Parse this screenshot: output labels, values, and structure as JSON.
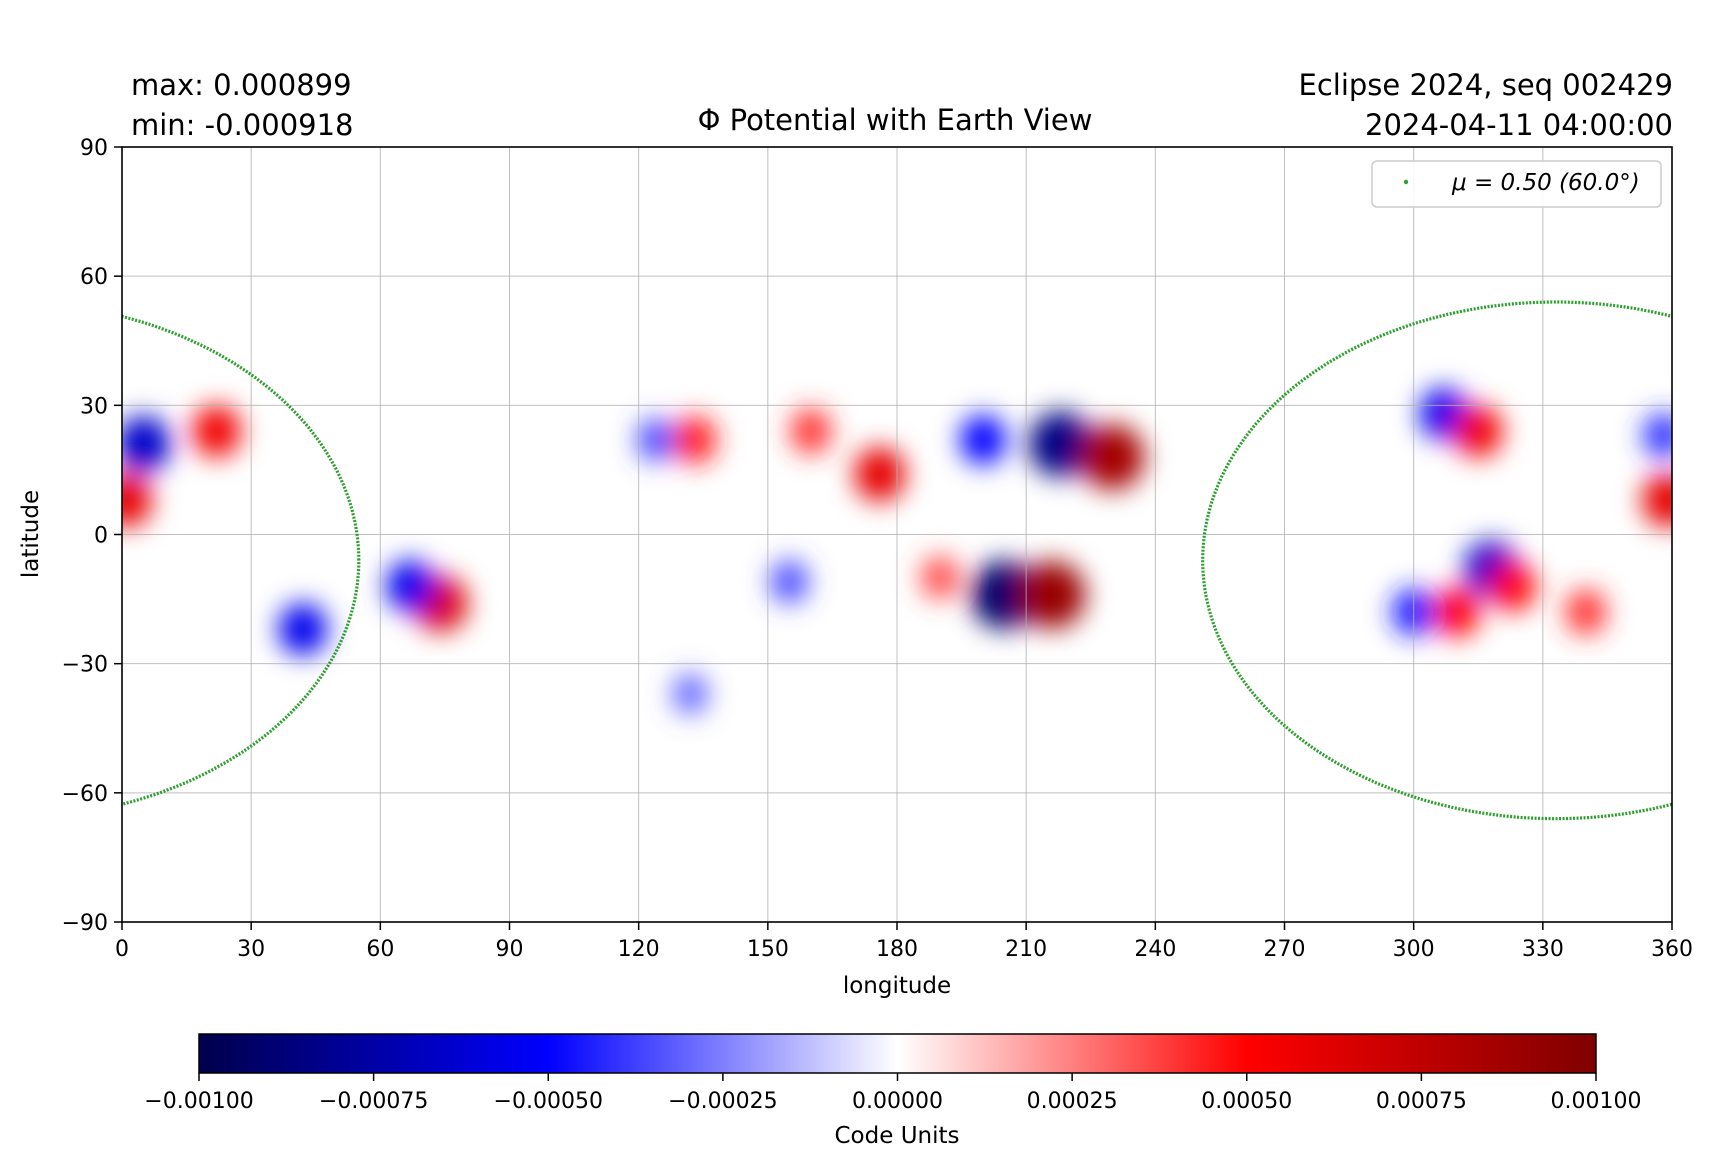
{
  "stats": {
    "max_label": "max:  0.000899",
    "min_label": "min:  -0.000918"
  },
  "info": {
    "line1": "Eclipse 2024, seq 002429",
    "line2": "2024-04-11 04:00:00"
  },
  "colors": {
    "contour": "#2ca02c",
    "grid": "#b0b0b0",
    "cmap": [
      "#00004c",
      "#0000ff",
      "#ffffff",
      "#ff0000",
      "#7f0000"
    ]
  },
  "chart_data": {
    "type": "heatmap",
    "title": "Φ Potential with Earth View",
    "xlabel": "longitude",
    "ylabel": "latitude",
    "xlim": [
      0,
      360
    ],
    "ylim": [
      -90,
      90
    ],
    "xticks": [
      0,
      30,
      60,
      90,
      120,
      150,
      180,
      210,
      240,
      270,
      300,
      330,
      360
    ],
    "yticks": [
      90,
      60,
      30,
      0,
      -30,
      -60,
      -90
    ],
    "ytick_labels": [
      "90",
      "60",
      "30",
      "0",
      "−30",
      "−60",
      "−90"
    ],
    "grid": true,
    "legend": {
      "position": "top-right",
      "entries": [
        "μ = 0.50 (60.0°)"
      ]
    },
    "earth_view_contour": {
      "center_lon": 333,
      "center_lat": -6,
      "lon_halfwidth": 82,
      "lat_top": 54,
      "lat_bottom": -66
    },
    "colorbar": {
      "label": "Code Units",
      "vmin": -0.001,
      "vmax": 0.001,
      "ticks": [
        "−0.00100",
        "−0.00075",
        "−0.00050",
        "−0.00025",
        "0.00000",
        "0.00025",
        "0.00050",
        "0.00075",
        "0.00100"
      ]
    },
    "features": [
      {
        "lon": 205,
        "lat": -14,
        "value": -0.000918
      },
      {
        "lon": 218,
        "lat": 21,
        "value": -0.00085
      },
      {
        "lon": 200,
        "lat": 22,
        "value": -0.0005
      },
      {
        "lon": 216,
        "lat": -14,
        "value": 0.000899
      },
      {
        "lon": 230,
        "lat": 18,
        "value": 0.00085
      },
      {
        "lon": 176,
        "lat": 14,
        "value": 0.0006
      },
      {
        "lon": 190,
        "lat": -10,
        "value": 0.00035
      },
      {
        "lon": 74,
        "lat": -16,
        "value": 0.00065
      },
      {
        "lon": 67,
        "lat": -12,
        "value": -0.00055
      },
      {
        "lon": 42,
        "lat": -22,
        "value": -0.00055
      },
      {
        "lon": 22,
        "lat": 24,
        "value": 0.00055
      },
      {
        "lon": 5,
        "lat": 21,
        "value": -0.00065
      },
      {
        "lon": 1,
        "lat": 8,
        "value": 0.0006
      },
      {
        "lon": 133,
        "lat": 22,
        "value": 0.00045
      },
      {
        "lon": 124,
        "lat": 22,
        "value": -0.00035
      },
      {
        "lon": 160,
        "lat": 24,
        "value": 0.0004
      },
      {
        "lon": 155,
        "lat": -11,
        "value": -0.00035
      },
      {
        "lon": 132,
        "lat": -37,
        "value": -0.0003
      },
      {
        "lon": 307,
        "lat": 28,
        "value": -0.00055
      },
      {
        "lon": 315,
        "lat": 24,
        "value": 0.00055
      },
      {
        "lon": 318,
        "lat": -8,
        "value": -0.00065
      },
      {
        "lon": 323,
        "lat": -12,
        "value": 0.0005
      },
      {
        "lon": 300,
        "lat": -18,
        "value": -0.00045
      },
      {
        "lon": 310,
        "lat": -18,
        "value": 0.0005
      },
      {
        "lon": 340,
        "lat": -18,
        "value": 0.0004
      },
      {
        "lon": 358,
        "lat": 23,
        "value": -0.0004
      },
      {
        "lon": 359,
        "lat": 8,
        "value": 0.0006
      }
    ]
  }
}
